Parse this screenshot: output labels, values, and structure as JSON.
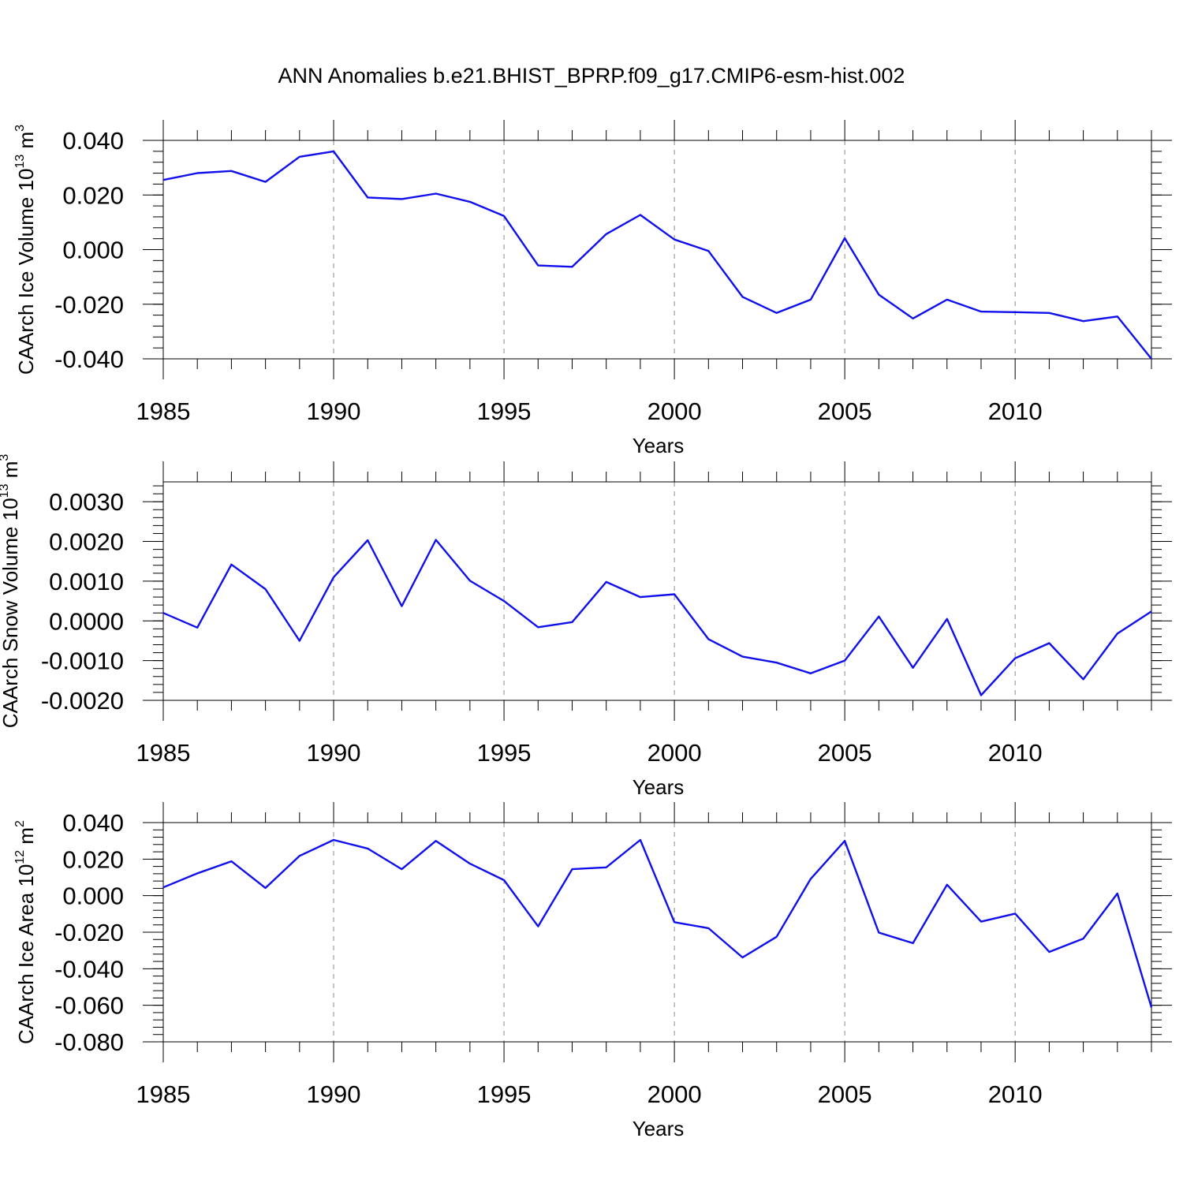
{
  "title": "ANN Anomalies b.e21.BHIST_BPRP.f09_g17.CMIP6-esm-hist.002",
  "colors": {
    "series": "#1010ee",
    "axis": "#000000",
    "grid": "#888888"
  },
  "chart_data": [
    {
      "type": "line",
      "xlabel": "Years",
      "ylabel": {
        "text": "CAArch Ice Volume 10",
        "exp": "13",
        "unit": " m",
        "unit_exp": "3"
      },
      "xlim": [
        1985,
        2014
      ],
      "ylim": [
        -0.04,
        0.04
      ],
      "x_ticks": [
        "1985",
        "1990",
        "1995",
        "2000",
        "2005",
        "2010"
      ],
      "y_ticks": [
        "-0.040",
        "-0.020",
        "0.000",
        "0.020",
        "0.040"
      ],
      "y_tick_values": [
        -0.04,
        -0.02,
        0.0,
        0.02,
        0.04
      ],
      "y_minor_step": 0.004,
      "grid_x": [
        1990,
        1995,
        2000,
        2005,
        2010
      ],
      "x": [
        1985,
        1986,
        1987,
        1988,
        1989,
        1990,
        1991,
        1992,
        1993,
        1994,
        1995,
        1996,
        1997,
        1998,
        1999,
        2000,
        2001,
        2002,
        2003,
        2004,
        2005,
        2006,
        2007,
        2008,
        2009,
        2010,
        2011,
        2012,
        2013,
        2014
      ],
      "values": [
        0.0255,
        0.028,
        0.0288,
        0.0248,
        0.034,
        0.036,
        0.0191,
        0.0185,
        0.0205,
        0.0175,
        0.0123,
        -0.0058,
        -0.0063,
        0.0057,
        0.0127,
        0.0037,
        -0.0005,
        -0.0173,
        -0.0232,
        -0.0183,
        0.0042,
        -0.0165,
        -0.0252,
        -0.0183,
        -0.0227,
        -0.0229,
        -0.0232,
        -0.0262,
        -0.0245,
        -0.04
      ]
    },
    {
      "type": "line",
      "xlabel": "Years",
      "ylabel": {
        "text": "CAArch Snow Volume 10",
        "exp": "13",
        "unit": " m",
        "unit_exp": "3"
      },
      "xlim": [
        1985,
        2014
      ],
      "ylim": [
        -0.002,
        0.0035
      ],
      "x_ticks": [
        "1985",
        "1990",
        "1995",
        "2000",
        "2005",
        "2010"
      ],
      "y_ticks": [
        "-0.0020",
        "-0.0010",
        "0.0000",
        "0.0010",
        "0.0020",
        "0.0030"
      ],
      "y_tick_values": [
        -0.002,
        -0.001,
        0.0,
        0.001,
        0.002,
        0.003
      ],
      "y_minor_step": 0.0002,
      "grid_x": [
        1990,
        1995,
        2000,
        2005,
        2010
      ],
      "x": [
        1985,
        1986,
        1987,
        1988,
        1989,
        1990,
        1991,
        1992,
        1993,
        1994,
        1995,
        1996,
        1997,
        1998,
        1999,
        2000,
        2001,
        2002,
        2003,
        2004,
        2005,
        2006,
        2007,
        2008,
        2009,
        2010,
        2011,
        2012,
        2013,
        2014
      ],
      "values": [
        0.0002,
        -0.00017,
        0.00142,
        0.0008,
        -0.0005,
        0.0011,
        0.00203,
        0.00037,
        0.00204,
        0.00101,
        0.0005,
        -0.00016,
        -3e-05,
        0.00098,
        0.0006,
        0.00067,
        -0.00046,
        -0.0009,
        -0.00105,
        -0.00132,
        -0.001,
        0.00011,
        -0.00118,
        5e-05,
        -0.00187,
        -0.00094,
        -0.00056,
        -0.00147,
        -0.00032,
        0.00024
      ]
    },
    {
      "type": "line",
      "xlabel": "Years",
      "ylabel": {
        "text": "CAArch Ice Area 10",
        "exp": "12",
        "unit": " m",
        "unit_exp": "2"
      },
      "xlim": [
        1985,
        2014
      ],
      "ylim": [
        -0.08,
        0.04
      ],
      "x_ticks": [
        "1985",
        "1990",
        "1995",
        "2000",
        "2005",
        "2010"
      ],
      "y_ticks": [
        "-0.080",
        "-0.060",
        "-0.040",
        "-0.020",
        "0.000",
        "0.020",
        "0.040"
      ],
      "y_tick_values": [
        -0.08,
        -0.06,
        -0.04,
        -0.02,
        0.0,
        0.02,
        0.04
      ],
      "y_minor_step": 0.004,
      "grid_x": [
        1990,
        1995,
        2000,
        2005,
        2010
      ],
      "x": [
        1985,
        1986,
        1987,
        1988,
        1989,
        1990,
        1991,
        1992,
        1993,
        1994,
        1995,
        1996,
        1997,
        1998,
        1999,
        2000,
        2001,
        2002,
        2003,
        2004,
        2005,
        2006,
        2007,
        2008,
        2009,
        2010,
        2011,
        2012,
        2013,
        2014
      ],
      "values": [
        0.0045,
        0.0122,
        0.0188,
        0.0042,
        0.0218,
        0.0305,
        0.0258,
        0.0145,
        0.03,
        0.0175,
        0.0085,
        -0.0168,
        0.0145,
        0.0155,
        0.0305,
        -0.0145,
        -0.0178,
        -0.0338,
        -0.0225,
        0.0092,
        0.03,
        -0.0202,
        -0.026,
        0.006,
        -0.0142,
        -0.0098,
        -0.0308,
        -0.0235,
        0.0012,
        -0.0612
      ]
    }
  ]
}
